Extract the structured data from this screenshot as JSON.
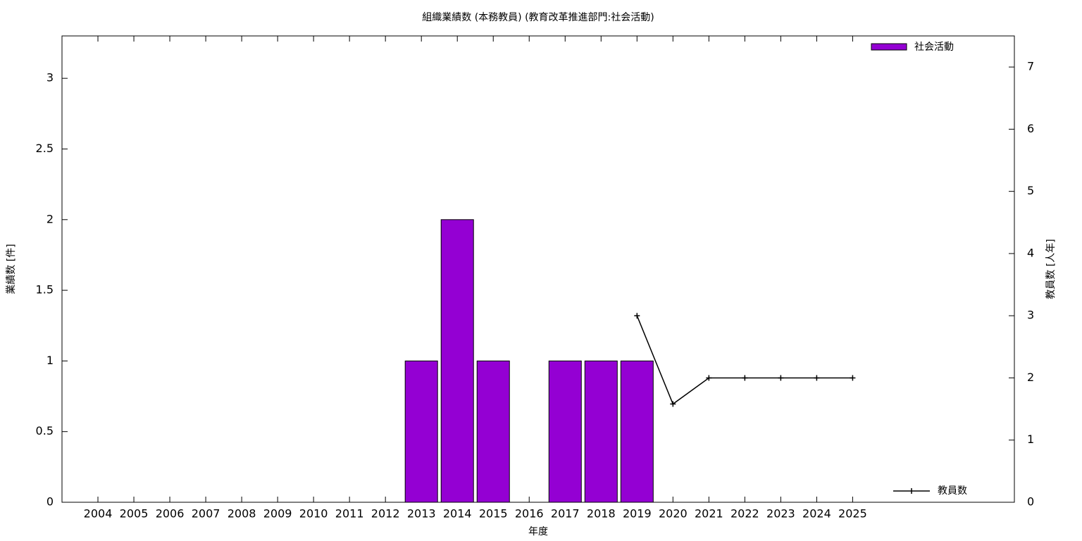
{
  "chart_data": {
    "type": "bar",
    "title": "組織業績数 (本務教員) (教育改革推進部門:社会活動)",
    "x_label": "年度",
    "y_label": "業績数 [件]",
    "y2_label": "教員数 [人年]",
    "categories": [
      "2004",
      "2005",
      "2006",
      "2007",
      "2008",
      "2009",
      "2010",
      "2011",
      "2012",
      "2013",
      "2014",
      "2015",
      "2016",
      "2017",
      "2018",
      "2019",
      "2020",
      "2021",
      "2022",
      "2023",
      "2024",
      "2025"
    ],
    "series": [
      {
        "name": "社会活動",
        "type": "bar",
        "axis": "y",
        "color": "#9400d3",
        "values": [
          0,
          0,
          0,
          0,
          0,
          0,
          0,
          0,
          0,
          1,
          2,
          1,
          0,
          1,
          1,
          1,
          null,
          null,
          null,
          null,
          null,
          null
        ]
      },
      {
        "name": "教員数",
        "type": "line",
        "axis": "y2",
        "color": "#000000",
        "values": [
          null,
          null,
          null,
          null,
          null,
          null,
          null,
          null,
          null,
          null,
          null,
          null,
          null,
          null,
          null,
          3,
          1.58,
          2,
          2,
          2,
          2,
          2
        ]
      }
    ],
    "ylim": [
      0,
      3.3
    ],
    "yticks": [
      0,
      0.5,
      1,
      1.5,
      2,
      2.5,
      3
    ],
    "y2lim": [
      0,
      7.5
    ],
    "y2ticks": [
      0,
      1,
      2,
      3,
      4,
      5,
      6,
      7
    ]
  }
}
